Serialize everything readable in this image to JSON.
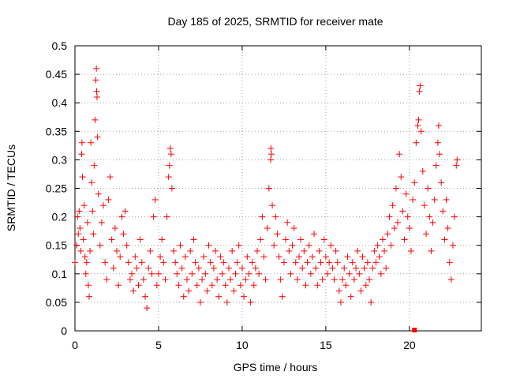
{
  "chart_data": {
    "type": "scatter",
    "title": "Day 185 of 2025, SRMTID for receiver mate",
    "xlabel": "GPS time / hours",
    "ylabel": "SRMTID / TECUs",
    "xlim": [
      0,
      24.3
    ],
    "ylim": [
      0,
      0.5
    ],
    "xticks": [
      0,
      5,
      10,
      15,
      20
    ],
    "yticks": [
      0,
      0.05,
      0.1,
      0.15,
      0.2,
      0.25,
      0.3,
      0.35,
      0.4,
      0.45,
      0.5
    ],
    "xtick_labels": [
      "0",
      "5",
      "10",
      "15",
      "20"
    ],
    "ytick_labels": [
      "0",
      "0.05",
      "0.1",
      "0.15",
      "0.2",
      "0.25",
      "0.3",
      "0.35",
      "0.4",
      "0.45",
      "0.5"
    ],
    "grid": true,
    "marker": "+",
    "color": "#ff0000",
    "series": [
      {
        "name": "SRMTID",
        "points": [
          [
            0.0,
            0.12
          ],
          [
            0.1,
            0.15
          ],
          [
            0.15,
            0.2
          ],
          [
            0.2,
            0.17
          ],
          [
            0.25,
            0.21
          ],
          [
            0.3,
            0.18
          ],
          [
            0.35,
            0.14
          ],
          [
            0.4,
            0.31
          ],
          [
            0.42,
            0.33
          ],
          [
            0.45,
            0.27
          ],
          [
            0.5,
            0.16
          ],
          [
            0.55,
            0.22
          ],
          [
            0.6,
            0.13
          ],
          [
            0.65,
            0.1
          ],
          [
            0.7,
            0.12
          ],
          [
            0.75,
            0.19
          ],
          [
            0.8,
            0.08
          ],
          [
            0.85,
            0.06
          ],
          [
            0.9,
            0.14
          ],
          [
            0.95,
            0.33
          ],
          [
            1.0,
            0.26
          ],
          [
            1.05,
            0.21
          ],
          [
            1.1,
            0.17
          ],
          [
            1.15,
            0.29
          ],
          [
            1.2,
            0.37
          ],
          [
            1.25,
            0.44
          ],
          [
            1.28,
            0.46
          ],
          [
            1.3,
            0.42
          ],
          [
            1.32,
            0.41
          ],
          [
            1.35,
            0.34
          ],
          [
            1.4,
            0.24
          ],
          [
            1.5,
            0.15
          ],
          [
            1.6,
            0.19
          ],
          [
            1.7,
            0.22
          ],
          [
            1.8,
            0.12
          ],
          [
            1.9,
            0.09
          ],
          [
            2.0,
            0.23
          ],
          [
            2.1,
            0.27
          ],
          [
            2.2,
            0.16
          ],
          [
            2.3,
            0.11
          ],
          [
            2.4,
            0.18
          ],
          [
            2.5,
            0.14
          ],
          [
            2.6,
            0.08
          ],
          [
            2.7,
            0.13
          ],
          [
            2.8,
            0.2
          ],
          [
            2.9,
            0.17
          ],
          [
            3.0,
            0.21
          ],
          [
            3.1,
            0.15
          ],
          [
            3.2,
            0.12
          ],
          [
            3.3,
            0.09
          ],
          [
            3.4,
            0.1
          ],
          [
            3.5,
            0.07
          ],
          [
            3.6,
            0.13
          ],
          [
            3.7,
            0.11
          ],
          [
            3.8,
            0.08
          ],
          [
            3.9,
            0.16
          ],
          [
            4.0,
            0.12
          ],
          [
            4.1,
            0.09
          ],
          [
            4.2,
            0.06
          ],
          [
            4.3,
            0.04
          ],
          [
            4.4,
            0.11
          ],
          [
            4.5,
            0.14
          ],
          [
            4.6,
            0.1
          ],
          [
            4.7,
            0.2
          ],
          [
            4.8,
            0.23
          ],
          [
            4.9,
            0.08
          ],
          [
            5.0,
            0.1
          ],
          [
            5.1,
            0.13
          ],
          [
            5.2,
            0.16
          ],
          [
            5.3,
            0.12
          ],
          [
            5.4,
            0.09
          ],
          [
            5.5,
            0.2
          ],
          [
            5.6,
            0.27
          ],
          [
            5.65,
            0.29
          ],
          [
            5.7,
            0.32
          ],
          [
            5.75,
            0.31
          ],
          [
            5.8,
            0.25
          ],
          [
            5.9,
            0.14
          ],
          [
            6.0,
            0.12
          ],
          [
            6.1,
            0.1
          ],
          [
            6.2,
            0.08
          ],
          [
            6.3,
            0.15
          ],
          [
            6.4,
            0.11
          ],
          [
            6.5,
            0.06
          ],
          [
            6.6,
            0.13
          ],
          [
            6.7,
            0.09
          ],
          [
            6.8,
            0.07
          ],
          [
            6.9,
            0.14
          ],
          [
            7.0,
            0.1
          ],
          [
            7.1,
            0.16
          ],
          [
            7.2,
            0.12
          ],
          [
            7.3,
            0.08
          ],
          [
            7.4,
            0.11
          ],
          [
            7.5,
            0.05
          ],
          [
            7.6,
            0.09
          ],
          [
            7.7,
            0.13
          ],
          [
            7.8,
            0.1
          ],
          [
            7.9,
            0.07
          ],
          [
            8.0,
            0.15
          ],
          [
            8.1,
            0.12
          ],
          [
            8.2,
            0.08
          ],
          [
            8.3,
            0.11
          ],
          [
            8.4,
            0.14
          ],
          [
            8.5,
            0.09
          ],
          [
            8.6,
            0.06
          ],
          [
            8.7,
            0.13
          ],
          [
            8.8,
            0.1
          ],
          [
            8.9,
            0.12
          ],
          [
            9.0,
            0.08
          ],
          [
            9.1,
            0.05
          ],
          [
            9.2,
            0.11
          ],
          [
            9.3,
            0.09
          ],
          [
            9.4,
            0.14
          ],
          [
            9.5,
            0.07
          ],
          [
            9.6,
            0.1
          ],
          [
            9.7,
            0.12
          ],
          [
            9.8,
            0.15
          ],
          [
            9.9,
            0.08
          ],
          [
            10.0,
            0.11
          ],
          [
            10.1,
            0.06
          ],
          [
            10.2,
            0.09
          ],
          [
            10.3,
            0.13
          ],
          [
            10.4,
            0.1
          ],
          [
            10.5,
            0.05
          ],
          [
            10.6,
            0.12
          ],
          [
            10.7,
            0.08
          ],
          [
            10.8,
            0.11
          ],
          [
            10.9,
            0.14
          ],
          [
            11.0,
            0.1
          ],
          [
            11.1,
            0.16
          ],
          [
            11.2,
            0.2
          ],
          [
            11.3,
            0.13
          ],
          [
            11.4,
            0.09
          ],
          [
            11.5,
            0.18
          ],
          [
            11.6,
            0.25
          ],
          [
            11.7,
            0.3
          ],
          [
            11.72,
            0.32
          ],
          [
            11.75,
            0.31
          ],
          [
            11.8,
            0.22
          ],
          [
            11.9,
            0.15
          ],
          [
            12.0,
            0.2
          ],
          [
            12.1,
            0.17
          ],
          [
            12.2,
            0.13
          ],
          [
            12.3,
            0.09
          ],
          [
            12.4,
            0.06
          ],
          [
            12.5,
            0.12
          ],
          [
            12.6,
            0.16
          ],
          [
            12.7,
            0.19
          ],
          [
            12.8,
            0.14
          ],
          [
            12.9,
            0.1
          ],
          [
            13.0,
            0.15
          ],
          [
            13.1,
            0.18
          ],
          [
            13.2,
            0.12
          ],
          [
            13.3,
            0.09
          ],
          [
            13.4,
            0.13
          ],
          [
            13.5,
            0.16
          ],
          [
            13.6,
            0.11
          ],
          [
            13.7,
            0.14
          ],
          [
            13.8,
            0.08
          ],
          [
            13.9,
            0.12
          ],
          [
            14.0,
            0.15
          ],
          [
            14.1,
            0.1
          ],
          [
            14.2,
            0.13
          ],
          [
            14.3,
            0.17
          ],
          [
            14.4,
            0.11
          ],
          [
            14.5,
            0.08
          ],
          [
            14.6,
            0.14
          ],
          [
            14.7,
            0.12
          ],
          [
            14.8,
            0.09
          ],
          [
            14.9,
            0.16
          ],
          [
            15.0,
            0.13
          ],
          [
            15.1,
            0.1
          ],
          [
            15.2,
            0.12
          ],
          [
            15.3,
            0.15
          ],
          [
            15.4,
            0.11
          ],
          [
            15.5,
            0.09
          ],
          [
            15.6,
            0.14
          ],
          [
            15.7,
            0.12
          ],
          [
            15.8,
            0.07
          ],
          [
            15.9,
            0.05
          ],
          [
            16.0,
            0.09
          ],
          [
            16.1,
            0.11
          ],
          [
            16.2,
            0.08
          ],
          [
            16.3,
            0.13
          ],
          [
            16.4,
            0.1
          ],
          [
            16.5,
            0.06
          ],
          [
            16.6,
            0.12
          ],
          [
            16.7,
            0.09
          ],
          [
            16.8,
            0.11
          ],
          [
            16.9,
            0.14
          ],
          [
            17.0,
            0.1
          ],
          [
            17.1,
            0.07
          ],
          [
            17.2,
            0.13
          ],
          [
            17.3,
            0.11
          ],
          [
            17.4,
            0.08
          ],
          [
            17.5,
            0.12
          ],
          [
            17.6,
            0.09
          ],
          [
            17.7,
            0.05
          ],
          [
            17.8,
            0.11
          ],
          [
            17.9,
            0.14
          ],
          [
            18.0,
            0.12
          ],
          [
            18.1,
            0.15
          ],
          [
            18.2,
            0.13
          ],
          [
            18.3,
            0.1
          ],
          [
            18.4,
            0.16
          ],
          [
            18.5,
            0.14
          ],
          [
            18.6,
            0.11
          ],
          [
            18.7,
            0.17
          ],
          [
            18.8,
            0.2
          ],
          [
            18.9,
            0.15
          ],
          [
            19.0,
            0.22
          ],
          [
            19.1,
            0.18
          ],
          [
            19.2,
            0.25
          ],
          [
            19.3,
            0.19
          ],
          [
            19.4,
            0.31
          ],
          [
            19.5,
            0.27
          ],
          [
            19.6,
            0.21
          ],
          [
            19.7,
            0.16
          ],
          [
            19.8,
            0.24
          ],
          [
            19.9,
            0.2
          ],
          [
            20.0,
            0.18
          ],
          [
            20.1,
            0.14
          ],
          [
            20.2,
            0.23
          ],
          [
            20.3,
            0.26
          ],
          [
            20.4,
            0.33
          ],
          [
            20.5,
            0.36
          ],
          [
            20.55,
            0.37
          ],
          [
            20.6,
            0.42
          ],
          [
            20.65,
            0.43
          ],
          [
            20.7,
            0.35
          ],
          [
            20.8,
            0.28
          ],
          [
            20.9,
            0.22
          ],
          [
            21.0,
            0.17
          ],
          [
            21.1,
            0.25
          ],
          [
            21.2,
            0.2
          ],
          [
            21.3,
            0.14
          ],
          [
            21.4,
            0.19
          ],
          [
            21.5,
            0.23
          ],
          [
            21.6,
            0.29
          ],
          [
            21.7,
            0.33
          ],
          [
            21.75,
            0.36
          ],
          [
            21.8,
            0.31
          ],
          [
            21.9,
            0.26
          ],
          [
            22.0,
            0.21
          ],
          [
            22.1,
            0.16
          ],
          [
            22.2,
            0.23
          ],
          [
            22.3,
            0.18
          ],
          [
            22.4,
            0.12
          ],
          [
            22.5,
            0.09
          ],
          [
            22.6,
            0.15
          ],
          [
            22.7,
            0.2
          ],
          [
            22.8,
            0.29
          ],
          [
            22.85,
            0.3
          ]
        ]
      }
    ],
    "annotations": [
      {
        "type": "square",
        "x": 20.3,
        "y": 0.0
      }
    ]
  }
}
